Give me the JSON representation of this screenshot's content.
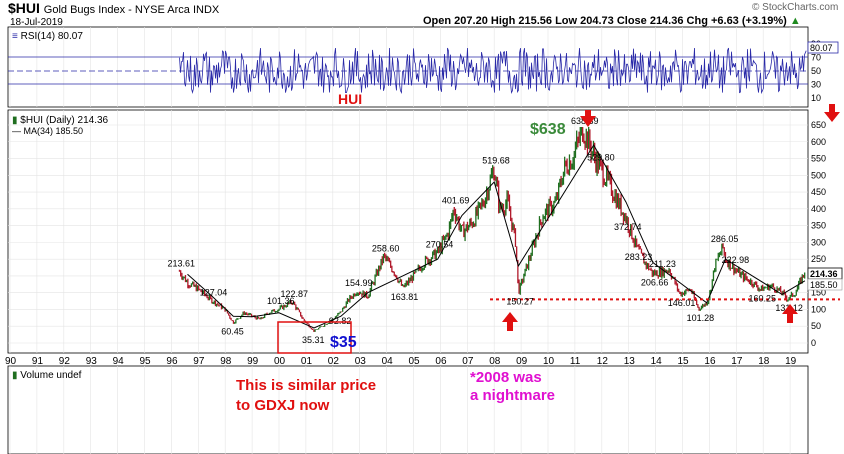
{
  "header": {
    "symbol": "$HUI",
    "name": "Gold Bugs Index - NYSE Arca  INDX",
    "date": "18-Jul-2019",
    "ohlc": "Open 207.20  High 215.56  Low 204.73  Close 214.36  Chg +6.63 (+3.19%)",
    "ohlc_arrow": "▲",
    "brand": "© StockCharts.com"
  },
  "rsi_panel": {
    "legend": "RSI(14) 80.07",
    "value_badge": "80.07",
    "ticks": [
      "90",
      "70",
      "50",
      "30",
      "10"
    ],
    "annotation": "HUI"
  },
  "price_panel": {
    "legend_price": "$HUI (Daily) 214.36",
    "legend_ma": "MA(34) 185.50",
    "price_badge": "214.36",
    "ma_badge": "185.50",
    "ticks": [
      "650",
      "600",
      "550",
      "500",
      "450",
      "400",
      "350",
      "300",
      "250",
      "200",
      "150",
      "100",
      "50",
      "0"
    ]
  },
  "volume_panel": {
    "legend": "Volume undef"
  },
  "annotations": {
    "peak_label": "$638",
    "low_label": "$35",
    "note_1": "This is similar price",
    "note_2": "to GDXJ now",
    "note_3": "*2008 was",
    "note_4": "a nightmare"
  },
  "colors": {
    "rsi_line": "#2a2aa8",
    "price_up": "#1f6e1f",
    "price_down": "#b0182a",
    "ma_line": "#000000",
    "annotation_red": "#e01010",
    "annotation_blue": "#1010d0",
    "annotation_green": "#3a8a3a",
    "annotation_magenta": "#e010d0"
  },
  "chart_data": {
    "type": "line",
    "title": "$HUI Gold Bugs Index - NYSE Arca INDX",
    "x_tick_labels": [
      "90",
      "91",
      "92",
      "93",
      "94",
      "95",
      "96",
      "97",
      "98",
      "99",
      "00",
      "01",
      "02",
      "03",
      "04",
      "05",
      "06",
      "07",
      "08",
      "09",
      "10",
      "11",
      "12",
      "13",
      "14",
      "15",
      "16",
      "17",
      "18",
      "19"
    ],
    "ylim": [
      0,
      680
    ],
    "series": [
      {
        "name": "$HUI (Daily)",
        "x": [
          1996.3,
          1996.6,
          1997.0,
          1997.5,
          1998.0,
          1998.3,
          1998.7,
          1999.0,
          1999.3,
          1999.6,
          2000.0,
          2000.5,
          2000.9,
          2001.3,
          2001.7,
          2002.0,
          2002.3,
          2002.6,
          2002.9,
          2003.3,
          2003.9,
          2004.3,
          2004.6,
          2004.9,
          2005.4,
          2005.9,
          2006.3,
          2006.5,
          2006.8,
          2007.2,
          2007.6,
          2008.0,
          2008.2,
          2008.5,
          2008.8,
          2008.9,
          2009.3,
          2009.8,
          2010.3,
          2010.6,
          2010.9,
          2011.3,
          2011.7,
          2011.9,
          2012.3,
          2012.6,
          2012.9,
          2013.3,
          2013.6,
          2013.9,
          2014.2,
          2014.5,
          2014.9,
          2015.3,
          2015.6,
          2015.9,
          2016.0,
          2016.2,
          2016.5,
          2016.6,
          2016.9,
          2017.2,
          2017.6,
          2017.9,
          2018.3,
          2018.7,
          2018.9,
          2019.2,
          2019.55
        ],
        "y": [
          213.61,
          180,
          160,
          127.04,
          100,
          60.45,
          90,
          80,
          70,
          90,
          101.36,
          122.87,
          70,
          35.31,
          55,
          70,
          92.82,
          130,
          154.99,
          140,
          258.6,
          210,
          163.81,
          190,
          240,
          270.54,
          330,
          401.69,
          330,
          360,
          420,
          519.68,
          400,
          420,
          300,
          150.27,
          250,
          380,
          420,
          520,
          550,
          638.39,
          560,
          529.8,
          470,
          420,
          372.74,
          283.23,
          240,
          206.66,
          211.23,
          220,
          146.01,
          160,
          101.28,
          120,
          140,
          230,
          286.05,
          250,
          222.98,
          200,
          180,
          160.25,
          170,
          150,
          131.12,
          150,
          214.36
        ]
      },
      {
        "name": "MA(34)",
        "x": [
          1996.6,
          1997.5,
          1998.3,
          1999.0,
          2000.0,
          2001.3,
          2002.3,
          2003.3,
          2004.6,
          2005.9,
          2006.8,
          2008.0,
          2008.9,
          2010.3,
          2011.7,
          2012.9,
          2013.9,
          2014.9,
          2015.9,
          2016.6,
          2017.6,
          2018.7,
          2019.55
        ],
        "y": [
          205,
          140,
          80,
          78,
          90,
          45,
          80,
          150,
          200,
          250,
          380,
          480,
          230,
          410,
          590,
          420,
          240,
          180,
          120,
          250,
          200,
          145,
          185.5
        ]
      },
      {
        "name": "RSI(14)",
        "ylim": [
          0,
          100
        ],
        "summary": "oscillates roughly between 20 and 80 over 1996–2019; last value 80.07"
      }
    ],
    "labeled_points": [
      {
        "x": 1996.3,
        "y": 213.61,
        "label": "213.61"
      },
      {
        "x": 1997.5,
        "y": 127.04,
        "label": "127.04"
      },
      {
        "x": 1998.3,
        "y": 60.45,
        "label": "60.45"
      },
      {
        "x": 2000.0,
        "y": 101.36,
        "label": "101.36"
      },
      {
        "x": 2000.5,
        "y": 122.87,
        "label": "122.87"
      },
      {
        "x": 2001.3,
        "y": 35.31,
        "label": "35.31"
      },
      {
        "x": 2002.3,
        "y": 92.82,
        "label": "92.82"
      },
      {
        "x": 2002.9,
        "y": 154.99,
        "label": "154.99"
      },
      {
        "x": 2003.9,
        "y": 258.6,
        "label": "258.60"
      },
      {
        "x": 2004.6,
        "y": 163.81,
        "label": "163.81"
      },
      {
        "x": 2005.9,
        "y": 270.54,
        "label": "270.54"
      },
      {
        "x": 2006.5,
        "y": 401.69,
        "label": "401.69"
      },
      {
        "x": 2008.0,
        "y": 519.68,
        "label": "519.68"
      },
      {
        "x": 2008.9,
        "y": 150.27,
        "label": "150.27"
      },
      {
        "x": 2011.3,
        "y": 638.39,
        "label": "638.39"
      },
      {
        "x": 2011.9,
        "y": 529.8,
        "label": "529.80"
      },
      {
        "x": 2012.9,
        "y": 372.74,
        "label": "372.74"
      },
      {
        "x": 2013.3,
        "y": 283.23,
        "label": "283.23"
      },
      {
        "x": 2013.9,
        "y": 206.66,
        "label": "206.66"
      },
      {
        "x": 2014.2,
        "y": 211.23,
        "label": "211.23"
      },
      {
        "x": 2014.9,
        "y": 146.01,
        "label": "146.01"
      },
      {
        "x": 2015.6,
        "y": 101.28,
        "label": "101.28"
      },
      {
        "x": 2016.5,
        "y": 286.05,
        "label": "286.05"
      },
      {
        "x": 2016.9,
        "y": 222.98,
        "label": "222.98"
      },
      {
        "x": 2017.9,
        "y": 160.25,
        "label": "160.25"
      },
      {
        "x": 2018.9,
        "y": 131.12,
        "label": "131.12"
      }
    ],
    "reference_line": {
      "y": 130,
      "style": "dotted",
      "color": "#e01010"
    },
    "grid": true
  }
}
